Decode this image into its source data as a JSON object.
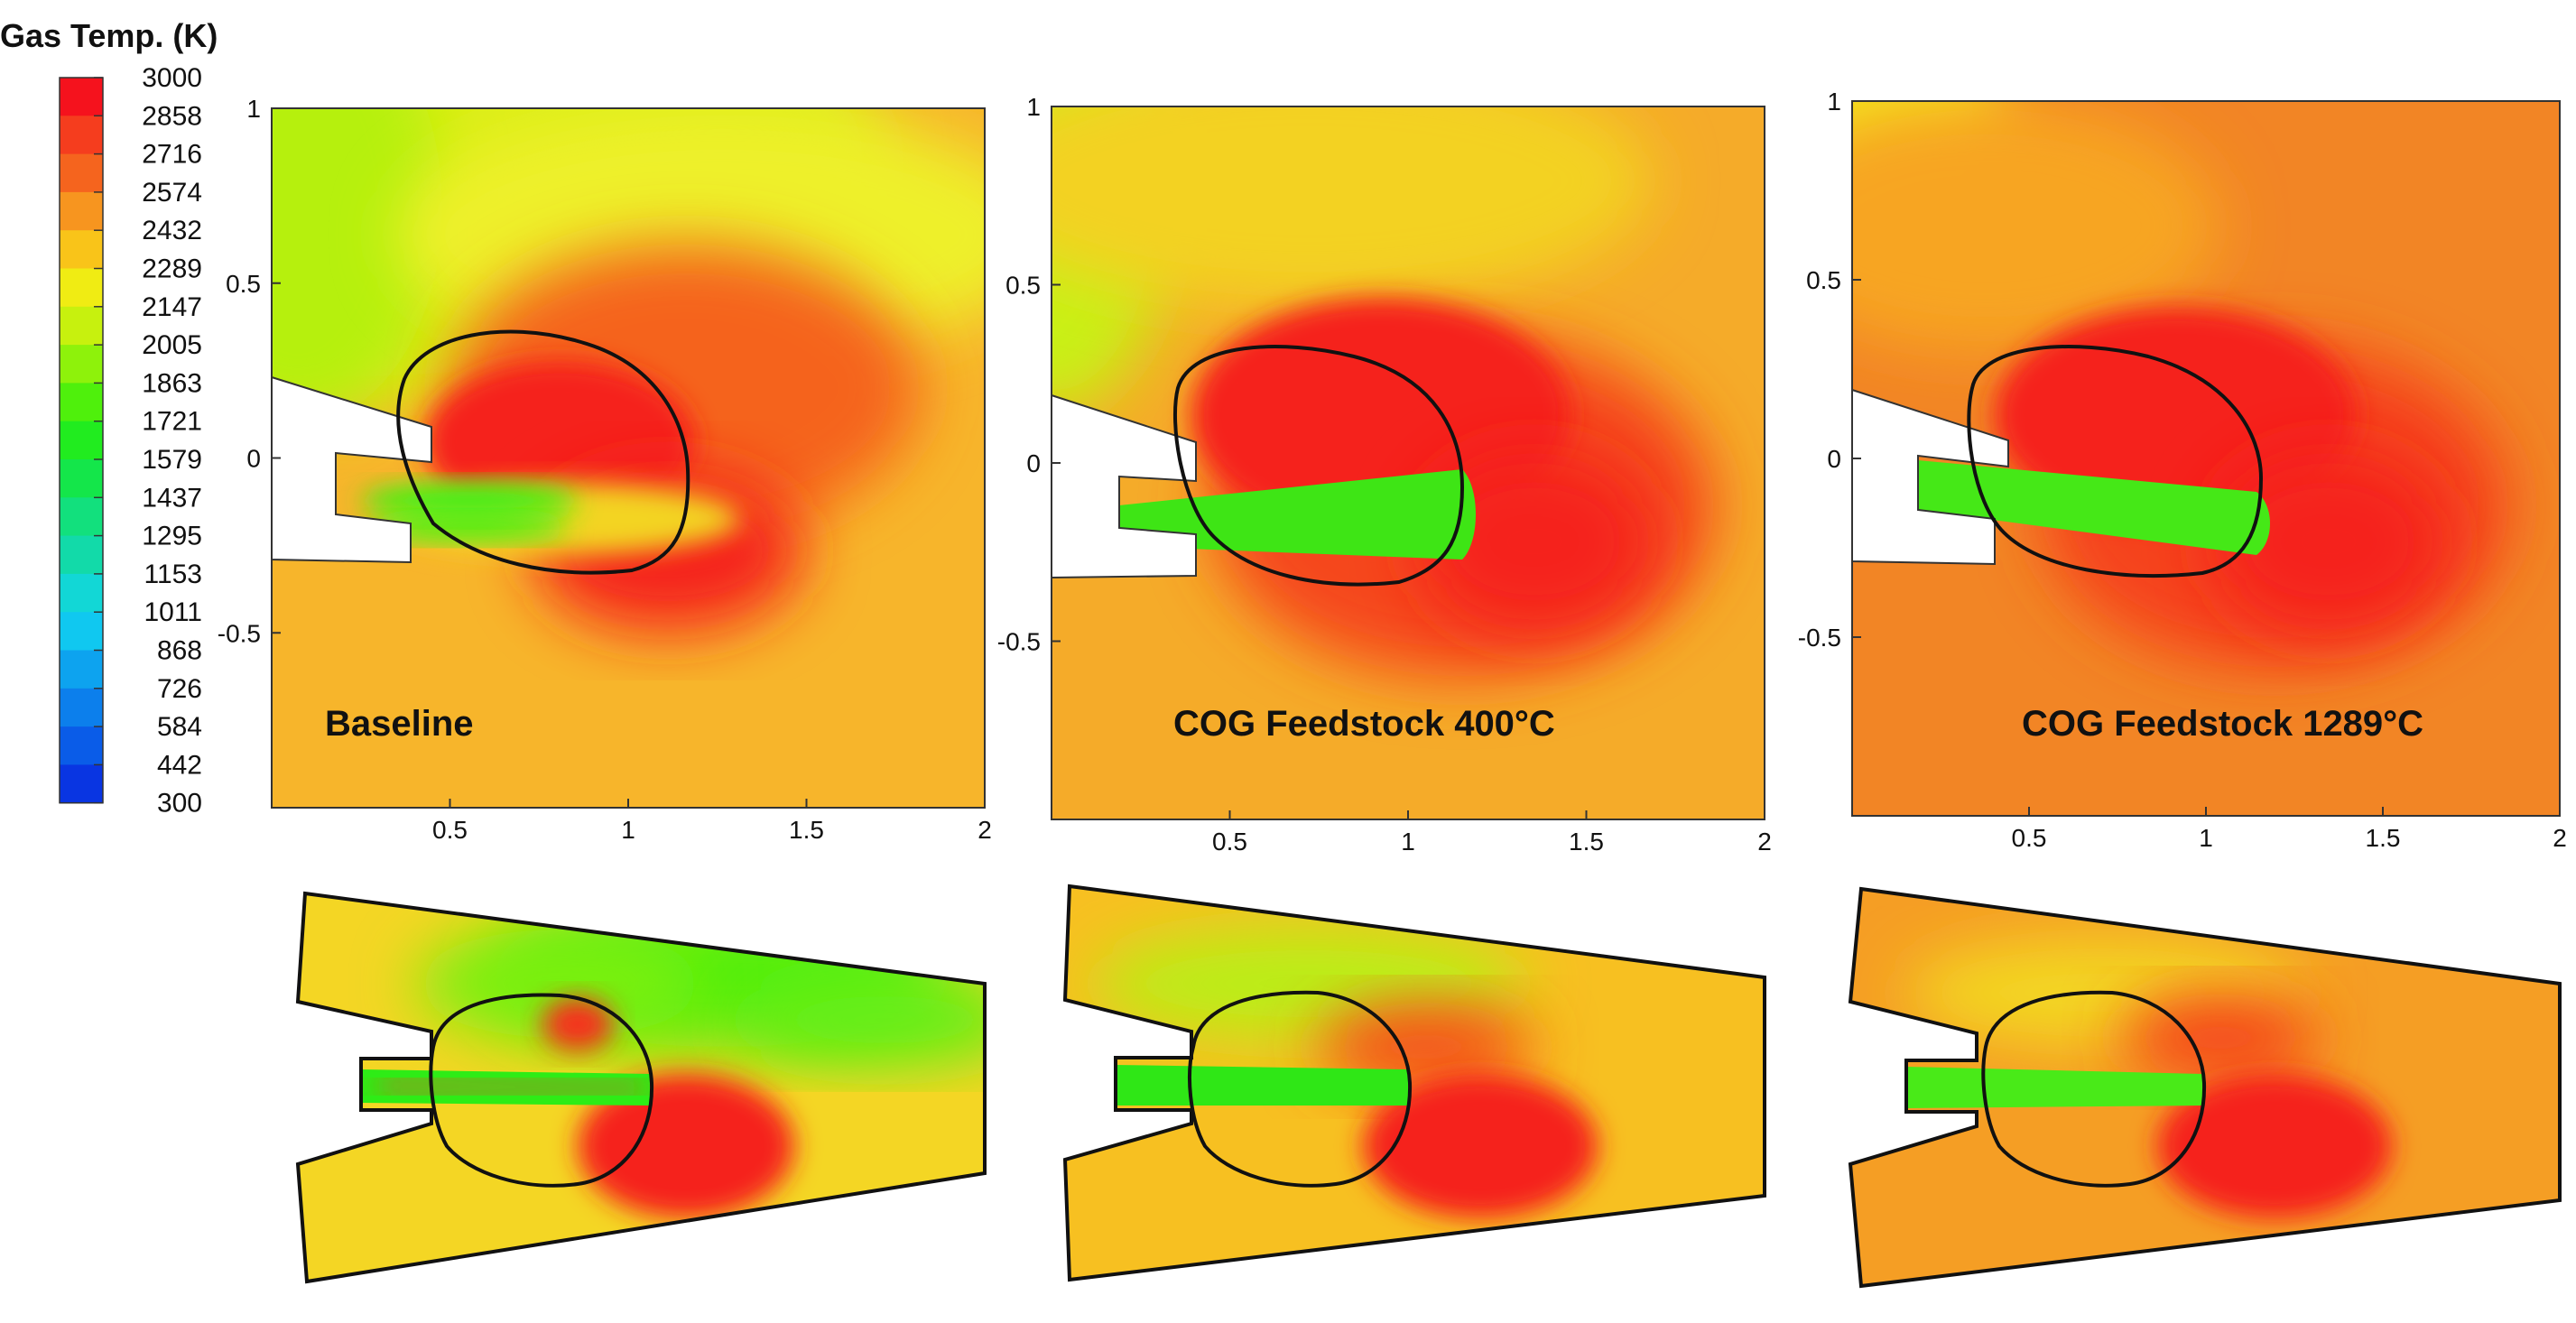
{
  "colorbar": {
    "title": "Gas Temp. (K)",
    "levels": [
      "3000",
      "2858",
      "2716",
      "2574",
      "2432",
      "2289",
      "2147",
      "2005",
      "1863",
      "1721",
      "1579",
      "1437",
      "1295",
      "1153",
      "1011",
      "868",
      "726",
      "584",
      "442",
      "300"
    ],
    "colors": [
      "#f5121d",
      "#f53d1e",
      "#f5641e",
      "#f7951f",
      "#f9c419",
      "#f0ec13",
      "#c7f10e",
      "#8ef20b",
      "#4ff00c",
      "#21ec1f",
      "#14e64a",
      "#12e07d",
      "#12daa9",
      "#12d7d6",
      "#10c8f0",
      "#0da3ef",
      "#0c7fec",
      "#0a5ce8",
      "#0935e2",
      "#0716d8"
    ]
  },
  "panels": [
    {
      "case_label": "Baseline",
      "x_ticks": [
        "0.5",
        "1",
        "1.5",
        "2"
      ],
      "y_ticks": [
        "1",
        "0.5",
        "0",
        "-0.5"
      ],
      "bg_color": "#f7b52b",
      "top_tint": "#b9f20f"
    },
    {
      "case_label": "COG Feedstock 400°C",
      "x_ticks": [
        "0.5",
        "1",
        "1.5",
        "2"
      ],
      "y_ticks": [
        "1",
        "0.5",
        "0",
        "-0.5"
      ],
      "bg_color": "#f5ab29",
      "top_tint": "#c9f014"
    },
    {
      "case_label": "COG Feedstock 1289°C",
      "x_ticks": [
        "0.5",
        "1",
        "1.5",
        "2"
      ],
      "y_ticks": [
        "1",
        "0.5",
        "0",
        "-0.5"
      ],
      "bg_color": "#f28525",
      "top_tint": "#f3ec1a"
    }
  ]
}
